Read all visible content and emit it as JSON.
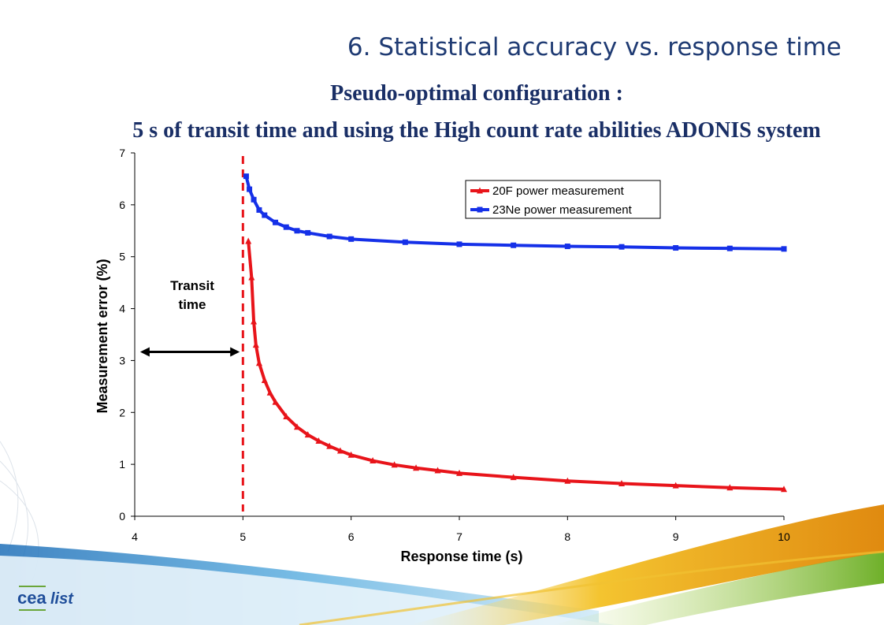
{
  "slide": {
    "title": "6. Statistical accuracy vs. response time",
    "subtitle1": "Pseudo-optimal configuration :",
    "subtitle2": "5 s of transit time and using the High count rate abilities ADONIS system"
  },
  "logo": {
    "text_left": "cea",
    "text_right": "list"
  },
  "chart_data": {
    "type": "line",
    "xlabel": "Response time (s)",
    "ylabel": "Measurement error (%)",
    "xlim": [
      4,
      10
    ],
    "ylim": [
      0,
      7
    ],
    "xticks": [
      4,
      5,
      6,
      7,
      8,
      9,
      10
    ],
    "yticks": [
      0,
      1,
      2,
      3,
      4,
      5,
      6,
      7
    ],
    "grid": false,
    "legend": "top-right",
    "series": [
      {
        "name": "20F power measurement",
        "color": "#e8141a",
        "marker": "triangle",
        "x": [
          5.05,
          5.08,
          5.1,
          5.12,
          5.15,
          5.2,
          5.25,
          5.3,
          5.4,
          5.5,
          5.6,
          5.7,
          5.8,
          5.9,
          6.0,
          6.2,
          6.4,
          6.6,
          6.8,
          7.0,
          7.5,
          8.0,
          8.5,
          9.0,
          9.5,
          10.0
        ],
        "y": [
          5.3,
          4.6,
          3.75,
          3.3,
          2.95,
          2.62,
          2.38,
          2.2,
          1.92,
          1.72,
          1.57,
          1.45,
          1.35,
          1.26,
          1.18,
          1.07,
          0.99,
          0.93,
          0.88,
          0.83,
          0.75,
          0.68,
          0.63,
          0.59,
          0.55,
          0.52
        ]
      },
      {
        "name": "23Ne power measurement",
        "color": "#1530e8",
        "marker": "square",
        "x": [
          5.03,
          5.06,
          5.1,
          5.15,
          5.2,
          5.3,
          5.4,
          5.5,
          5.6,
          5.8,
          6.0,
          6.5,
          7.0,
          7.5,
          8.0,
          8.5,
          9.0,
          9.5,
          10.0
        ],
        "y": [
          6.55,
          6.3,
          6.1,
          5.9,
          5.8,
          5.66,
          5.57,
          5.5,
          5.46,
          5.39,
          5.34,
          5.28,
          5.24,
          5.22,
          5.2,
          5.19,
          5.17,
          5.16,
          5.15
        ]
      }
    ],
    "annotations": [
      {
        "text_line1": "Transit",
        "text_line2": "time",
        "type": "double-arrow",
        "x_from": 4.05,
        "x_to": 4.97,
        "y": 3.5
      },
      {
        "type": "vertical-dashed-line",
        "x": 5.0,
        "color": "#e8141a"
      }
    ]
  }
}
